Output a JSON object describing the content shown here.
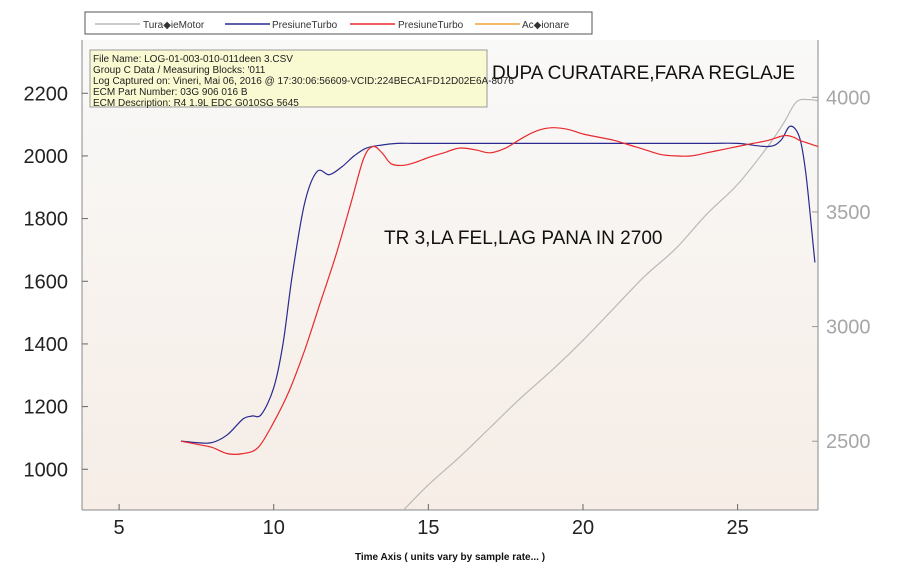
{
  "chart_data": {
    "type": "line",
    "xlabel": "Time Axis ( units vary by sample rate... )",
    "xlim": [
      3.8,
      27.6
    ],
    "x_ticks": [
      5,
      10,
      15,
      20,
      25
    ],
    "ylim_left": [
      870,
      2370
    ],
    "y_ticks_left": [
      1000,
      1200,
      1400,
      1600,
      1800,
      2000,
      2200
    ],
    "ylim_right": [
      2200,
      4250
    ],
    "y_ticks_right": [
      2500,
      3000,
      3500,
      4000
    ],
    "grid": false,
    "legend": "top",
    "series": [
      {
        "name": "Tura◆ieMotor",
        "axis": "right",
        "color": "#b9b9b9",
        "points": [
          [
            14.2,
            2200
          ],
          [
            15,
            2310
          ],
          [
            16,
            2430
          ],
          [
            17,
            2560
          ],
          [
            18,
            2690
          ],
          [
            19,
            2810
          ],
          [
            20,
            2940
          ],
          [
            21,
            3080
          ],
          [
            22,
            3220
          ],
          [
            23,
            3340
          ],
          [
            24,
            3490
          ],
          [
            25,
            3620
          ],
          [
            26,
            3790
          ],
          [
            26.5,
            3890
          ],
          [
            26.9,
            3980
          ],
          [
            27.3,
            3990
          ],
          [
            27.6,
            3985
          ]
        ]
      },
      {
        "name": "PresiuneTurbo",
        "axis": "left",
        "color": "#2a2a8f",
        "points": [
          [
            7,
            1090
          ],
          [
            7.5,
            1085
          ],
          [
            8,
            1085
          ],
          [
            8.5,
            1110
          ],
          [
            9,
            1160
          ],
          [
            9.3,
            1170
          ],
          [
            9.6,
            1175
          ],
          [
            10,
            1260
          ],
          [
            10.3,
            1400
          ],
          [
            10.6,
            1620
          ],
          [
            11,
            1850
          ],
          [
            11.4,
            1950
          ],
          [
            11.8,
            1940
          ],
          [
            12.2,
            1965
          ],
          [
            12.6,
            2000
          ],
          [
            13,
            2025
          ],
          [
            13.5,
            2035
          ],
          [
            14,
            2040
          ],
          [
            14.5,
            2040
          ],
          [
            15,
            2040
          ],
          [
            16,
            2040
          ],
          [
            18,
            2040
          ],
          [
            20,
            2040
          ],
          [
            22,
            2040
          ],
          [
            24,
            2040
          ],
          [
            25,
            2040
          ],
          [
            26,
            2030
          ],
          [
            26.4,
            2050
          ],
          [
            26.7,
            2095
          ],
          [
            27,
            2060
          ],
          [
            27.2,
            1950
          ],
          [
            27.4,
            1760
          ],
          [
            27.5,
            1660
          ]
        ]
      },
      {
        "name": "PresiuneTurbo",
        "axis": "left",
        "color": "#e8292e",
        "points": [
          [
            7,
            1090
          ],
          [
            7.5,
            1080
          ],
          [
            8,
            1070
          ],
          [
            8.5,
            1050
          ],
          [
            9,
            1050
          ],
          [
            9.5,
            1070
          ],
          [
            10,
            1150
          ],
          [
            10.5,
            1250
          ],
          [
            11,
            1380
          ],
          [
            11.5,
            1530
          ],
          [
            12,
            1680
          ],
          [
            12.5,
            1850
          ],
          [
            12.9,
            1990
          ],
          [
            13.2,
            2030
          ],
          [
            13.5,
            2010
          ],
          [
            13.8,
            1975
          ],
          [
            14.2,
            1970
          ],
          [
            14.6,
            1980
          ],
          [
            15,
            1995
          ],
          [
            15.5,
            2010
          ],
          [
            16,
            2025
          ],
          [
            16.5,
            2020
          ],
          [
            17,
            2010
          ],
          [
            17.5,
            2025
          ],
          [
            18,
            2055
          ],
          [
            18.5,
            2080
          ],
          [
            19,
            2090
          ],
          [
            19.5,
            2085
          ],
          [
            20,
            2070
          ],
          [
            20.5,
            2060
          ],
          [
            21,
            2050
          ],
          [
            21.5,
            2035
          ],
          [
            22,
            2020
          ],
          [
            22.5,
            2005
          ],
          [
            23,
            2000
          ],
          [
            23.5,
            2000
          ],
          [
            24,
            2010
          ],
          [
            24.5,
            2020
          ],
          [
            25,
            2030
          ],
          [
            25.5,
            2040
          ],
          [
            26,
            2050
          ],
          [
            26.5,
            2065
          ],
          [
            26.8,
            2060
          ],
          [
            27,
            2050
          ],
          [
            27.3,
            2040
          ],
          [
            27.6,
            2030
          ]
        ]
      },
      {
        "name": "Ac◆ionare",
        "axis": "left",
        "color": "#f2a238",
        "points": []
      }
    ]
  },
  "info_box": [
    "File Name: LOG-01-003-010-011deen 3.CSV",
    "Group C Data / Measuring Blocks: '011",
    "Log Captured on: Vineri, Mai 06, 2016 @ 17:30:06:56609-VCID:224BECA1FD12D02E6A-8076",
    "ECM Part Number: 03G 906 016 B",
    "ECM Description: R4 1.9L EDC G010SG  5645"
  ],
  "annotations": {
    "title_note": "DUPA CURATARE,FARA REGLAJE",
    "mid_note": "TR 3,LA FEL,LAG PANA IN 2700"
  },
  "colors": {
    "plot_bg_top": "#f7f7f7",
    "plot_bg_bottom": "#f5ede6",
    "info_bg": "#fafad2"
  }
}
